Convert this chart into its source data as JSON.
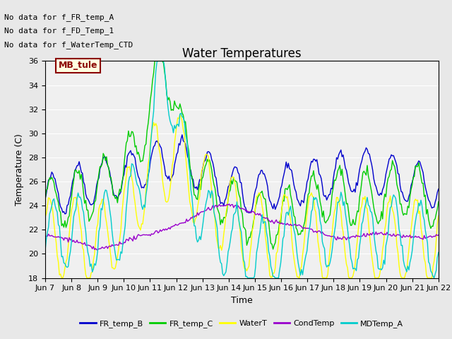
{
  "title": "Water Temperatures",
  "xlabel": "Time",
  "ylabel": "Temperature (C)",
  "ylim": [
    18,
    36
  ],
  "yticks": [
    18,
    20,
    22,
    24,
    26,
    28,
    30,
    32,
    34,
    36
  ],
  "x_labels": [
    "Jun 7",
    "Jun 8",
    "Jun 9",
    "Jun 10",
    "Jun 11",
    "Jun 12",
    "Jun 13",
    "Jun 14",
    "Jun 15",
    "Jun 16",
    "Jun 17",
    "Jun 18",
    "Jun 19",
    "Jun 20",
    "Jun 21",
    "Jun 22"
  ],
  "annotations": [
    "No data for f_FR_temp_A",
    "No data for f_FD_Temp_1",
    "No data for f_WaterTemp_CTD"
  ],
  "mb_tule_label": "MB_tule",
  "legend": [
    "FR_temp_B",
    "FR_temp_C",
    "WaterT",
    "CondTemp",
    "MDTemp_A"
  ],
  "colors": {
    "FR_temp_B": "#0000CC",
    "FR_temp_C": "#00CC00",
    "WaterT": "#FFFF00",
    "CondTemp": "#9900CC",
    "MDTemp_A": "#00CCCC"
  },
  "background_color": "#E8E8E8",
  "plot_background": "#F0F0F0",
  "grid_color": "#FFFFFF",
  "title_fontsize": 12,
  "axis_fontsize": 9,
  "tick_fontsize": 8,
  "annotation_fontsize": 8
}
